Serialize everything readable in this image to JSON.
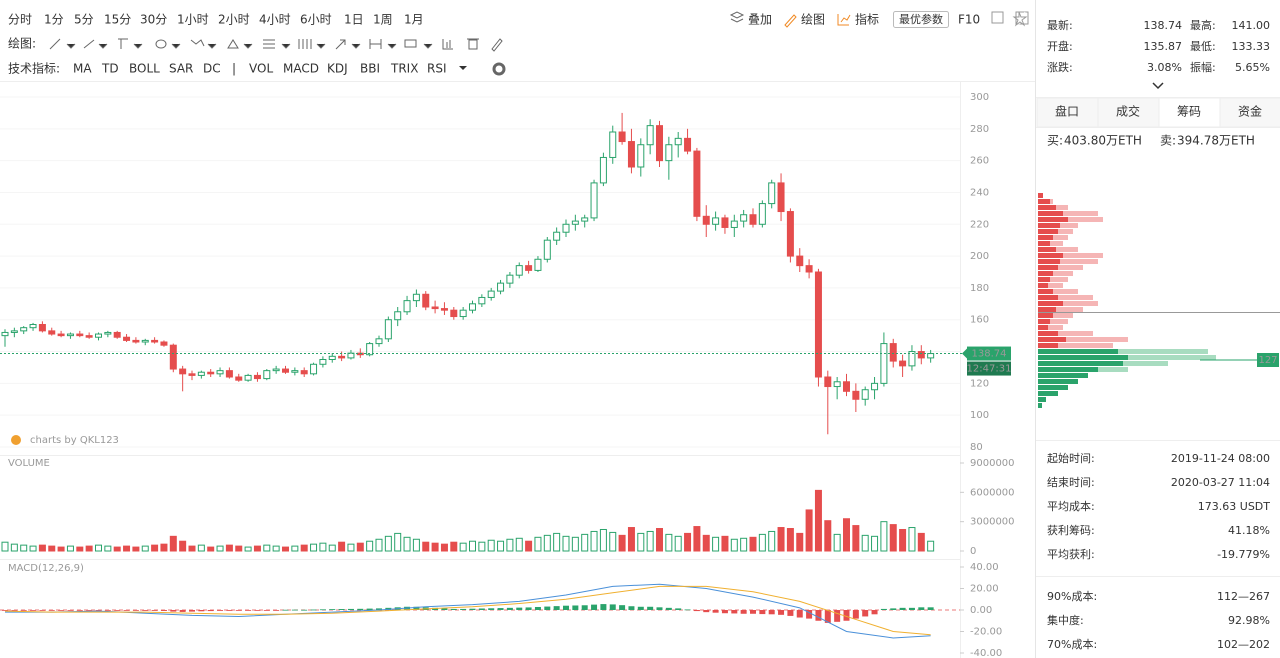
{
  "toolbar": {
    "periods": [
      "分时",
      "1分",
      "5分",
      "15分",
      "30分",
      "1小时",
      "2小时",
      "4小时",
      "6小时",
      "1日",
      "1周",
      "1月"
    ],
    "actions": [
      "叠加",
      "绘图",
      "指标"
    ],
    "button": "最优参数",
    "f10": "F10",
    "draw_label": "绘图:",
    "indicator_label": "技术指标:",
    "main_indicators": [
      "MA",
      "TD",
      "BOLL",
      "SAR",
      "DC"
    ],
    "sub_indicators": [
      "VOL",
      "MACD",
      "KDJ",
      "BBI",
      "TRIX",
      "RSI"
    ]
  },
  "chart_data": [
    {
      "type": "candlestick",
      "watermark": "charts by QKL123",
      "up_color": "#2aa36b",
      "down_color": "#e54d4d",
      "ylim": [
        80,
        300
      ],
      "yticks": [
        80,
        100,
        120,
        140,
        160,
        180,
        200,
        220,
        240,
        260,
        280,
        300
      ],
      "grid": true,
      "last_price": 138.74,
      "last_time": "12:47:31",
      "candles": [
        [
          150,
          154,
          143,
          152
        ],
        [
          152,
          155,
          149,
          153
        ],
        [
          153,
          156,
          151,
          155
        ],
        [
          155,
          158,
          153,
          157
        ],
        [
          157,
          159,
          152,
          153
        ],
        [
          153,
          155,
          150,
          151
        ],
        [
          151,
          153,
          149,
          150
        ],
        [
          150,
          152,
          148,
          151
        ],
        [
          151,
          153,
          149,
          150
        ],
        [
          150,
          152,
          148,
          149
        ],
        [
          149,
          152,
          147,
          151
        ],
        [
          151,
          153,
          149,
          152
        ],
        [
          152,
          153,
          148,
          149
        ],
        [
          149,
          151,
          146,
          147
        ],
        [
          147,
          149,
          145,
          146
        ],
        [
          146,
          148,
          144,
          147
        ],
        [
          147,
          149,
          145,
          146
        ],
        [
          146,
          147,
          143,
          144
        ],
        [
          144,
          145,
          127,
          129
        ],
        [
          129,
          131,
          115,
          126
        ],
        [
          126,
          128,
          122,
          125
        ],
        [
          125,
          128,
          123,
          127
        ],
        [
          127,
          129,
          124,
          126
        ],
        [
          126,
          130,
          124,
          128
        ],
        [
          128,
          130,
          123,
          124
        ],
        [
          124,
          126,
          121,
          122
        ],
        [
          122,
          126,
          121,
          125
        ],
        [
          125,
          127,
          121,
          123
        ],
        [
          123,
          129,
          122,
          128
        ],
        [
          128,
          131,
          126,
          129
        ],
        [
          129,
          131,
          126,
          127
        ],
        [
          127,
          130,
          125,
          128
        ],
        [
          128,
          130,
          124,
          126
        ],
        [
          126,
          133,
          125,
          132
        ],
        [
          132,
          137,
          130,
          135
        ],
        [
          135,
          139,
          133,
          137
        ],
        [
          137,
          140,
          134,
          136
        ],
        [
          136,
          141,
          135,
          139
        ],
        [
          139,
          142,
          136,
          138
        ],
        [
          138,
          146,
          137,
          145
        ],
        [
          145,
          150,
          143,
          148
        ],
        [
          148,
          162,
          146,
          160
        ],
        [
          160,
          168,
          156,
          165
        ],
        [
          165,
          175,
          163,
          172
        ],
        [
          172,
          179,
          168,
          176
        ],
        [
          176,
          178,
          166,
          168
        ],
        [
          168,
          172,
          164,
          167
        ],
        [
          167,
          171,
          163,
          166
        ],
        [
          166,
          168,
          160,
          162
        ],
        [
          162,
          168,
          160,
          166
        ],
        [
          166,
          172,
          164,
          170
        ],
        [
          170,
          176,
          168,
          174
        ],
        [
          174,
          180,
          172,
          178
        ],
        [
          178,
          185,
          176,
          183
        ],
        [
          183,
          190,
          180,
          188
        ],
        [
          188,
          196,
          186,
          194
        ],
        [
          194,
          197,
          189,
          191
        ],
        [
          191,
          200,
          190,
          198
        ],
        [
          198,
          212,
          196,
          210
        ],
        [
          210,
          218,
          207,
          215
        ],
        [
          215,
          223,
          212,
          220
        ],
        [
          220,
          226,
          216,
          222
        ],
        [
          222,
          226,
          218,
          224
        ],
        [
          224,
          248,
          222,
          246
        ],
        [
          246,
          265,
          244,
          262
        ],
        [
          262,
          282,
          258,
          278
        ],
        [
          278,
          290,
          270,
          272
        ],
        [
          272,
          280,
          252,
          256
        ],
        [
          256,
          274,
          250,
          270
        ],
        [
          270,
          286,
          264,
          282
        ],
        [
          282,
          285,
          256,
          260
        ],
        [
          260,
          275,
          248,
          270
        ],
        [
          270,
          278,
          262,
          274
        ],
        [
          274,
          280,
          264,
          266
        ],
        [
          266,
          268,
          222,
          225
        ],
        [
          225,
          232,
          212,
          220
        ],
        [
          220,
          228,
          216,
          224
        ],
        [
          224,
          226,
          214,
          218
        ],
        [
          218,
          226,
          212,
          222
        ],
        [
          222,
          229,
          218,
          226
        ],
        [
          226,
          230,
          218,
          220
        ],
        [
          220,
          235,
          218,
          233
        ],
        [
          233,
          248,
          230,
          246
        ],
        [
          246,
          252,
          222,
          228
        ],
        [
          228,
          230,
          196,
          200
        ],
        [
          200,
          205,
          190,
          194
        ],
        [
          194,
          198,
          186,
          190
        ],
        [
          190,
          192,
          118,
          124
        ],
        [
          124,
          128,
          88,
          118
        ],
        [
          118,
          124,
          110,
          121
        ],
        [
          121,
          126,
          112,
          115
        ],
        [
          115,
          120,
          102,
          110
        ],
        [
          110,
          118,
          106,
          116
        ],
        [
          116,
          124,
          110,
          120
        ],
        [
          120,
          152,
          118,
          145
        ],
        [
          145,
          148,
          130,
          134
        ],
        [
          134,
          138,
          124,
          131
        ],
        [
          131,
          144,
          128,
          140
        ],
        [
          140,
          144,
          132,
          136
        ],
        [
          136,
          141,
          133,
          138.74
        ]
      ]
    },
    {
      "type": "bar",
      "title": "VOLUME",
      "ylim": [
        0,
        9000000
      ],
      "yticks": [
        0,
        3000000,
        6000000,
        9000000
      ],
      "values": [
        900000,
        700000,
        600000,
        500000,
        600000,
        500000,
        400000,
        500000,
        400000,
        500000,
        600000,
        500000,
        400000,
        500000,
        400000,
        500000,
        600000,
        700000,
        1500000,
        1000000,
        500000,
        600000,
        400000,
        500000,
        600000,
        500000,
        400000,
        500000,
        600000,
        500000,
        400000,
        500000,
        600000,
        700000,
        800000,
        600000,
        900000,
        700000,
        800000,
        1000000,
        1200000,
        1500000,
        1800000,
        1400000,
        1200000,
        900000,
        800000,
        700000,
        900000,
        800000,
        1000000,
        900000,
        1100000,
        1000000,
        1200000,
        1300000,
        1000000,
        1400000,
        1600000,
        1800000,
        1500000,
        1400000,
        1700000,
        2000000,
        2200000,
        1900000,
        1600000,
        2400000,
        1800000,
        2000000,
        2300000,
        1700000,
        1500000,
        1800000,
        2500000,
        1600000,
        1400000,
        1500000,
        1200000,
        1300000,
        1400000,
        1700000,
        2000000,
        2400000,
        2300000,
        1800000,
        4200000,
        6200000,
        3100000,
        1700000,
        3300000,
        2600000,
        1600000,
        1500000,
        3000000,
        2700000,
        2200000,
        2400000,
        1800000,
        1000000
      ]
    },
    {
      "type": "macd",
      "title": "MACD(12,26,9)",
      "ylim": [
        -40,
        40
      ],
      "yticks": [
        {
          "value": -40,
          "label": "-40.00"
        },
        {
          "value": -20,
          "label": "-20.00"
        },
        {
          "value": 0,
          "label": "0.00"
        },
        {
          "value": 20,
          "label": "20.00"
        },
        {
          "value": 40,
          "label": "40.00"
        }
      ],
      "up_color": "#2aa36b",
      "down_color": "#e54d4d",
      "histogram": [
        -0.5,
        -0.5,
        -0.4,
        -0.3,
        -0.5,
        -0.6,
        -0.6,
        -0.7,
        -0.6,
        -0.6,
        -0.5,
        -0.5,
        -0.6,
        -0.7,
        -0.7,
        -0.8,
        -0.8,
        -0.9,
        -1.5,
        -1.8,
        -1.5,
        -1.2,
        -1,
        -0.8,
        -0.8,
        -0.7,
        -0.6,
        -0.5,
        -0.3,
        -0.2,
        0.2,
        0.3,
        0.2,
        0.4,
        0.6,
        0.8,
        0.9,
        1,
        1.1,
        1.3,
        1.5,
        2,
        2.5,
        3,
        3,
        2.5,
        2,
        1.5,
        1,
        1,
        1.2,
        1.4,
        1.6,
        1.8,
        2,
        2.2,
        2.4,
        2.8,
        3.2,
        3.6,
        4,
        4.2,
        4.4,
        5,
        5.5,
        5.2,
        4.5,
        3.5,
        3,
        3,
        2.5,
        2,
        1.5,
        0.5,
        -1,
        -2,
        -2.5,
        -3,
        -3.2,
        -3.5,
        -3.5,
        -3.8,
        -4,
        -4.5,
        -5.5,
        -7,
        -8,
        -10,
        -12,
        -11,
        -10,
        -8,
        -6,
        -4,
        1,
        1.5,
        2,
        2,
        2.5,
        2.5
      ],
      "line_x": [
        0,
        5,
        10,
        15,
        20,
        25,
        30,
        35,
        40,
        45,
        50,
        55,
        60,
        65,
        70,
        75,
        80,
        85,
        90,
        95,
        99
      ],
      "series": [
        {
          "color": "#4a90d9",
          "values": [
            -2,
            -2,
            -1,
            -3,
            -5,
            -6,
            -4,
            -2,
            0,
            3,
            5,
            8,
            14,
            22,
            24,
            20,
            12,
            2,
            -20,
            -26,
            -24
          ]
        },
        {
          "color": "#f0b030",
          "values": [
            -1,
            -2,
            -2,
            -2,
            -3,
            -4,
            -4,
            -3,
            -1,
            1,
            3,
            6,
            10,
            16,
            22,
            22,
            17,
            8,
            -6,
            -20,
            -23
          ]
        }
      ]
    }
  ],
  "stats": [
    [
      {
        "label": "最新:",
        "value": "138.74",
        "color": "#333"
      },
      {
        "label": "最高:",
        "value": "141.00",
        "color": "#2aa36b"
      }
    ],
    [
      {
        "label": "开盘:",
        "value": "135.87",
        "color": "#333"
      },
      {
        "label": "最低:",
        "value": "133.33",
        "color": "#e54d4d"
      }
    ],
    [
      {
        "label": "涨跌:",
        "value": "3.08%",
        "color": "#2aa36b"
      },
      {
        "label": "振幅:",
        "value": "5.65%",
        "color": "#2aa36b"
      }
    ]
  ],
  "tabs": [
    "盘口",
    "成交",
    "筹码",
    "资金"
  ],
  "orders": [
    {
      "label": "买:",
      "value": "403.80万ETH"
    },
    {
      "label": "卖:",
      "value": "394.78万ETH"
    }
  ],
  "chips": {
    "marker": 127,
    "red_dark": [
      5,
      12,
      18,
      25,
      30,
      22,
      20,
      15,
      12,
      18,
      25,
      22,
      20,
      15,
      12,
      10,
      15,
      20,
      25,
      18,
      15,
      12,
      10,
      20,
      28,
      20
    ],
    "red_light": [
      0,
      15,
      30,
      60,
      65,
      40,
      35,
      30,
      25,
      40,
      65,
      60,
      45,
      35,
      30,
      25,
      40,
      55,
      60,
      45,
      35,
      30,
      25,
      55,
      90,
      75
    ],
    "green_dark": [
      80,
      90,
      85,
      60,
      50,
      40,
      30,
      20,
      8,
      4
    ],
    "green_light": [
      170,
      178,
      130,
      90,
      45,
      35,
      25,
      12,
      5,
      3
    ]
  },
  "chip_stats": [
    {
      "label": "起始时间:",
      "value": "2019-11-24 08:00",
      "color": "#333"
    },
    {
      "label": "结束时间:",
      "value": "2020-03-27 11:04",
      "color": "#333"
    },
    {
      "label": "平均成本:",
      "value": "173.63 USDT",
      "color": "#e54d4d"
    },
    {
      "label": "获利筹码:",
      "value": "41.18%",
      "color": "#333"
    },
    {
      "label": "平均获利:",
      "value": "-19.779%",
      "color": "#e54d4d"
    }
  ],
  "range_stats": [
    {
      "label": "90%成本:",
      "value": "112—267",
      "color": "#333"
    },
    {
      "label": "集中度:",
      "value": "92.98%",
      "color": "#333"
    },
    {
      "label": "70%成本:",
      "value": "102—202",
      "color": "#333"
    }
  ]
}
